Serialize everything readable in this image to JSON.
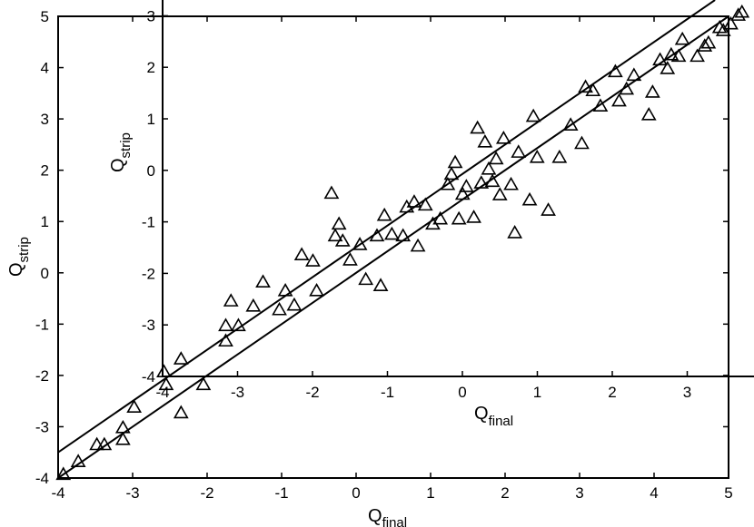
{
  "chart_data": [
    {
      "type": "scatter",
      "title": "",
      "xlabel": {
        "main": "Q",
        "sub": "final"
      },
      "ylabel": {
        "main": "Q",
        "sub": "strip"
      },
      "xlim": [
        -4,
        5
      ],
      "ylim": [
        -4,
        5
      ],
      "xticks": [
        "-4",
        "-3",
        "-2",
        "-1",
        "0",
        "1",
        "2",
        "3",
        "4",
        "5"
      ],
      "yticks": [
        "-4",
        "-3",
        "-2",
        "-1",
        "0",
        "1",
        "2",
        "3",
        "4",
        "5"
      ],
      "grid": false,
      "marker": "open-triangle",
      "lines": [
        {
          "x": [
            -4,
            5
          ],
          "y": [
            -4,
            5
          ]
        },
        {
          "x": [
            -4,
            5
          ],
          "y": [
            -3.5,
            5.5
          ]
        }
      ],
      "series": [
        {
          "points": [
            [
              -3.93,
              -3.93
            ],
            [
              -3.73,
              -3.68
            ],
            [
              -3.48,
              -3.35
            ],
            [
              -3.38,
              -3.35
            ],
            [
              -3.13,
              -3.25
            ],
            [
              -3.13,
              -3.02
            ],
            [
              -2.98,
              -2.62
            ],
            [
              -2.55,
              -2.18
            ],
            [
              -2.58,
              -1.93
            ],
            [
              -2.35,
              -2.73
            ],
            [
              -2.35,
              -1.68
            ],
            [
              -2.05,
              -2.18
            ],
            [
              -1.75,
              -1.33
            ],
            [
              -1.75,
              -1.03
            ],
            [
              -1.68,
              -0.55
            ],
            [
              -1.58,
              -1.03
            ],
            [
              -1.38,
              -0.65
            ],
            [
              -1.25,
              -0.18
            ],
            [
              -1.03,
              -0.72
            ],
            [
              -0.95,
              -0.35
            ],
            [
              -0.83,
              -0.63
            ],
            [
              -0.73,
              0.35
            ],
            [
              -0.58,
              0.23
            ],
            [
              -0.53,
              -0.35
            ],
            [
              -0.33,
              1.55
            ],
            [
              -0.28,
              0.72
            ],
            [
              -0.23,
              0.95
            ],
            [
              -0.18,
              0.62
            ],
            [
              -0.08,
              0.25
            ],
            [
              0.05,
              0.55
            ],
            [
              0.13,
              -0.13
            ],
            [
              0.28,
              0.72
            ],
            [
              0.33,
              -0.25
            ],
            [
              0.38,
              1.12
            ],
            [
              0.48,
              0.75
            ],
            [
              0.63,
              0.72
            ],
            [
              0.68,
              1.28
            ],
            [
              0.78,
              1.38
            ],
            [
              0.83,
              0.52
            ],
            [
              0.93,
              1.32
            ],
            [
              1.03,
              0.95
            ],
            [
              1.13,
              1.05
            ],
            [
              1.23,
              1.72
            ],
            [
              1.28,
              1.92
            ],
            [
              1.33,
              2.15
            ],
            [
              1.38,
              1.05
            ],
            [
              1.43,
              1.53
            ],
            [
              1.48,
              1.68
            ],
            [
              1.58,
              1.08
            ],
            [
              1.63,
              2.82
            ],
            [
              1.68,
              1.75
            ],
            [
              1.73,
              2.55
            ],
            [
              1.78,
              2.02
            ],
            [
              1.83,
              1.78
            ],
            [
              1.88,
              2.22
            ],
            [
              1.93,
              1.52
            ],
            [
              1.98,
              2.62
            ],
            [
              2.08,
              1.72
            ],
            [
              2.13,
              0.78
            ],
            [
              2.18,
              2.35
            ],
            [
              2.33,
              1.42
            ],
            [
              2.38,
              3.05
            ],
            [
              2.43,
              2.25
            ],
            [
              2.58,
              1.22
            ],
            [
              2.73,
              2.25
            ],
            [
              2.88,
              2.88
            ],
            [
              3.03,
              2.52
            ],
            [
              3.08,
              3.62
            ],
            [
              3.18,
              3.55
            ],
            [
              3.28,
              3.25
            ],
            [
              3.48,
              3.92
            ],
            [
              3.53,
              3.35
            ],
            [
              3.63,
              3.58
            ],
            [
              3.73,
              3.85
            ],
            [
              3.93,
              3.08
            ],
            [
              3.98,
              3.52
            ],
            [
              4.08,
              4.15
            ],
            [
              4.18,
              3.98
            ],
            [
              4.23,
              4.25
            ],
            [
              4.33,
              4.22
            ],
            [
              4.38,
              4.55
            ],
            [
              4.58,
              4.22
            ],
            [
              4.68,
              4.42
            ],
            [
              4.73,
              4.48
            ],
            [
              4.88,
              4.78
            ],
            [
              4.93,
              4.72
            ],
            [
              5.03,
              4.85
            ],
            [
              5.13,
              5.02
            ],
            [
              5.18,
              5.08
            ]
          ]
        }
      ]
    },
    {
      "type": "scatter",
      "title": "",
      "xlabel": {
        "main": "Q",
        "sub": "final"
      },
      "ylabel": {
        "main": "Q",
        "sub": "strip"
      },
      "xticks": [
        "-4",
        "-3",
        "-2",
        "-1",
        "0",
        "1",
        "2",
        "3"
      ],
      "yticks": [
        "-4",
        "-3",
        "-2",
        "-1",
        "0",
        "1",
        "2",
        "3"
      ],
      "grid": false
    }
  ]
}
